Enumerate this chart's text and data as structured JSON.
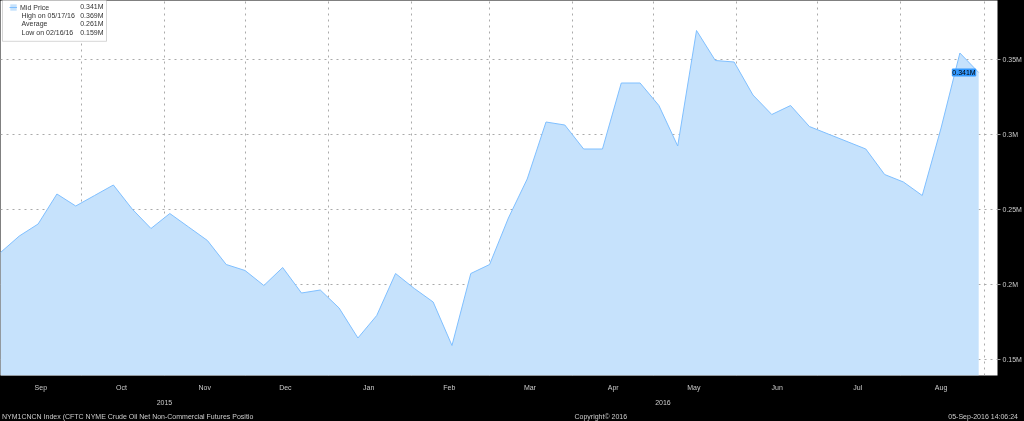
{
  "chart_data": {
    "type": "area",
    "x": [
      "2015-09-01",
      "2015-09-08",
      "2015-09-15",
      "2015-09-22",
      "2015-09-29",
      "2015-10-06",
      "2015-10-13",
      "2015-10-20",
      "2015-10-27",
      "2015-11-03",
      "2015-11-10",
      "2015-11-17",
      "2015-11-24",
      "2015-12-01",
      "2015-12-08",
      "2015-12-15",
      "2015-12-22",
      "2015-12-29",
      "2016-01-05",
      "2016-01-12",
      "2016-01-19",
      "2016-01-26",
      "2016-02-02",
      "2016-02-09",
      "2016-02-16",
      "2016-02-23",
      "2016-03-01",
      "2016-03-08",
      "2016-03-15",
      "2016-03-22",
      "2016-03-29",
      "2016-04-05",
      "2016-04-12",
      "2016-04-19",
      "2016-04-26",
      "2016-05-03",
      "2016-05-10",
      "2016-05-17",
      "2016-05-24",
      "2016-05-31",
      "2016-06-07",
      "2016-06-14",
      "2016-06-21",
      "2016-06-28",
      "2016-07-05",
      "2016-07-12",
      "2016-07-19",
      "2016-07-26",
      "2016-08-02",
      "2016-08-09",
      "2016-08-16",
      "2016-08-23",
      "2016-08-30"
    ],
    "series": [
      {
        "name": "Mid Price",
        "color": "#7fbfff",
        "values": [
          0.221,
          0.232,
          0.24,
          0.26,
          0.252,
          0.259,
          0.266,
          0.25,
          0.237,
          0.247,
          0.238,
          0.229,
          0.213,
          0.209,
          0.199,
          0.211,
          0.194,
          0.196,
          0.184,
          0.164,
          0.179,
          0.207,
          0.197,
          0.188,
          0.159,
          0.207,
          0.213,
          0.244,
          0.27,
          0.308,
          0.306,
          0.29,
          0.29,
          0.334,
          0.334,
          0.319,
          0.292,
          0.369,
          0.349,
          0.348,
          0.326,
          0.313,
          0.319,
          0.305,
          0.3,
          0.295,
          0.29,
          0.273,
          0.268,
          0.259,
          0.304,
          0.354,
          0.341
        ],
        "value_labels": [
          null,
          null,
          null,
          null,
          null,
          null,
          null,
          null,
          null,
          null,
          null,
          null,
          null,
          null,
          null,
          null,
          null,
          null,
          null,
          null,
          null,
          null,
          null,
          null,
          null,
          null,
          null,
          null,
          null,
          null,
          null,
          null,
          null,
          null,
          null,
          null,
          null,
          null,
          null,
          null,
          null,
          null,
          null,
          null,
          null,
          null,
          null,
          null,
          null,
          null,
          null,
          null,
          "0.341M"
        ]
      }
    ],
    "xlim": [
      "2015-09-01",
      "2016-09-06"
    ],
    "xticks": [
      {
        "value": "2015-09-01",
        "label": null
      },
      {
        "value": "2015-09-16",
        "label": "Sep"
      },
      {
        "value": "2015-10-01",
        "label": null
      },
      {
        "value": "2015-10-16",
        "label": "Oct"
      },
      {
        "value": "2015-11-01",
        "label": null
      },
      {
        "value": "2015-11-16",
        "label": "Nov"
      },
      {
        "value": "2015-12-01",
        "label": null
      },
      {
        "value": "2015-12-16",
        "label": "Dec"
      },
      {
        "value": "2016-01-01",
        "label": null
      },
      {
        "value": "2016-01-16",
        "label": "Jan"
      },
      {
        "value": "2016-02-01",
        "label": null
      },
      {
        "value": "2016-02-15",
        "label": "Feb"
      },
      {
        "value": "2016-03-01",
        "label": null
      },
      {
        "value": "2016-03-16",
        "label": "Mar"
      },
      {
        "value": "2016-04-01",
        "label": null
      },
      {
        "value": "2016-04-16",
        "label": "Apr"
      },
      {
        "value": "2016-05-01",
        "label": null
      },
      {
        "value": "2016-05-16",
        "label": "May"
      },
      {
        "value": "2016-06-01",
        "label": null
      },
      {
        "value": "2016-06-16",
        "label": "Jun"
      },
      {
        "value": "2016-07-01",
        "label": null
      },
      {
        "value": "2016-07-16",
        "label": "Jul"
      },
      {
        "value": "2016-08-01",
        "label": null
      },
      {
        "value": "2016-08-16",
        "label": "Aug"
      },
      {
        "value": "2016-09-01",
        "label": null
      }
    ],
    "ylim": [
      0.139,
      0.389
    ],
    "yticks": [
      {
        "value": 0.15,
        "label": "0.15M"
      },
      {
        "value": 0.2,
        "label": "0.2M"
      },
      {
        "value": 0.25,
        "label": "0.25M"
      },
      {
        "value": 0.3,
        "label": "0.3M"
      },
      {
        "value": 0.35,
        "label": "0.35M"
      }
    ],
    "grid": true,
    "legend": "top left",
    "annotations": [
      "2015",
      "2016",
      "0.341M",
      "High on 05/17/16",
      "0.369M",
      "Average",
      "0.261M",
      "Low on 02/16/16",
      "0.159M",
      "NYM1CNCN Index (CFTC NYME Crude Oil Net Non-Commercial Futures Positio",
      "Copyright© 2016",
      "05-Sep-2016 14:06:24"
    ]
  }
}
